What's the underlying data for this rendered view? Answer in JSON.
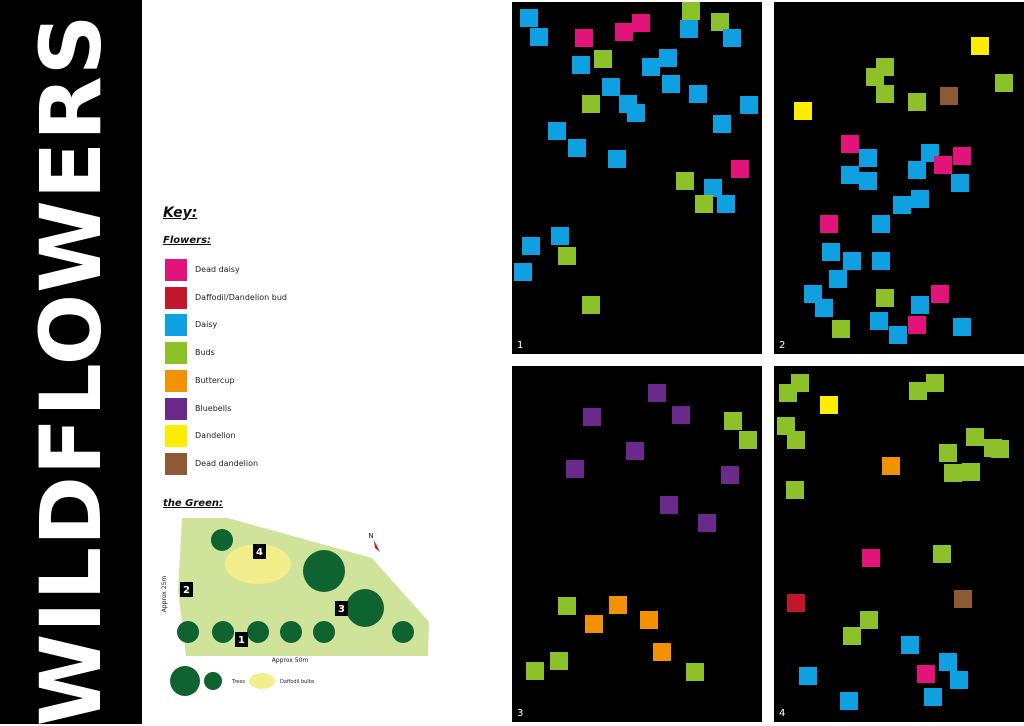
{
  "title": "WILDFLOWERS",
  "key": {
    "title": "Key:",
    "flowers_heading": "Flowers:",
    "items": [
      {
        "id": "dead-daisy",
        "label": "Dead daisy",
        "color": "#e2137a"
      },
      {
        "id": "daffodil-bud",
        "label": "Daffodil/Dandelion bud",
        "color": "#c1172c"
      },
      {
        "id": "daisy",
        "label": "Daisy",
        "color": "#0ea0e0"
      },
      {
        "id": "buds",
        "label": "Buds",
        "color": "#8cc12a"
      },
      {
        "id": "buttercup",
        "label": "Buttercup",
        "color": "#f39200"
      },
      {
        "id": "bluebells",
        "label": "Bluebells",
        "color": "#6a2a8c"
      },
      {
        "id": "dandelion",
        "label": "Dandelion",
        "color": "#ffed00"
      },
      {
        "id": "dead-dandelion",
        "label": "Dead dandelion",
        "color": "#8e5a33"
      }
    ]
  },
  "green": {
    "heading": "the Green:",
    "width_label": "Approx 50m",
    "height_label": "Approx 25m",
    "north": "N",
    "areas": [
      "1",
      "2",
      "3",
      "4"
    ],
    "map_legend": {
      "trees": "Trees",
      "bulbs": "Daffodil bulbs"
    },
    "colors": {
      "grass": "#cfe39a",
      "tree": "#0f6330",
      "bulbs": "#f3ee8c"
    }
  },
  "plots": [
    {
      "number": "1"
    },
    {
      "number": "2"
    },
    {
      "number": "3"
    },
    {
      "number": "4"
    }
  ]
}
